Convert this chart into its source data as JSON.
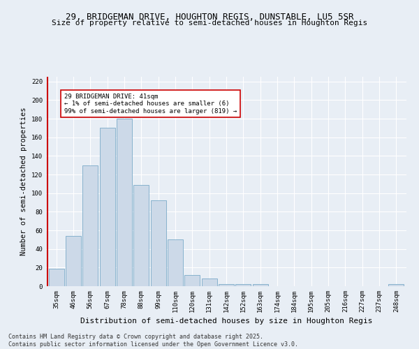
{
  "title": "29, BRIDGEMAN DRIVE, HOUGHTON REGIS, DUNSTABLE, LU5 5SR",
  "subtitle": "Size of property relative to semi-detached houses in Houghton Regis",
  "xlabel": "Distribution of semi-detached houses by size in Houghton Regis",
  "ylabel": "Number of semi-detached properties",
  "categories": [
    "35sqm",
    "46sqm",
    "56sqm",
    "67sqm",
    "78sqm",
    "88sqm",
    "99sqm",
    "110sqm",
    "120sqm",
    "131sqm",
    "142sqm",
    "152sqm",
    "163sqm",
    "174sqm",
    "184sqm",
    "195sqm",
    "205sqm",
    "216sqm",
    "227sqm",
    "237sqm",
    "248sqm"
  ],
  "values": [
    19,
    54,
    130,
    170,
    180,
    109,
    92,
    50,
    12,
    8,
    2,
    2,
    2,
    0,
    0,
    0,
    0,
    0,
    0,
    0,
    2
  ],
  "bar_color": "#ccd9e8",
  "bar_edge_color": "#7aaac8",
  "highlight_color": "#cc0000",
  "annotation_text": "29 BRIDGEMAN DRIVE: 41sqm\n← 1% of semi-detached houses are smaller (6)\n99% of semi-detached houses are larger (819) →",
  "annotation_box_color": "#ffffff",
  "annotation_box_edge_color": "#cc0000",
  "annotation_fontsize": 6.5,
  "title_fontsize": 9,
  "subtitle_fontsize": 8,
  "xlabel_fontsize": 8,
  "ylabel_fontsize": 7.5,
  "tick_fontsize": 6.5,
  "footer_text": "Contains HM Land Registry data © Crown copyright and database right 2025.\nContains public sector information licensed under the Open Government Licence v3.0.",
  "footer_fontsize": 6,
  "ylim": [
    0,
    225
  ],
  "yticks": [
    0,
    20,
    40,
    60,
    80,
    100,
    120,
    140,
    160,
    180,
    200,
    220
  ],
  "bg_color": "#e8eef5",
  "plot_bg_color": "#e8eef5",
  "grid_color": "#ffffff"
}
